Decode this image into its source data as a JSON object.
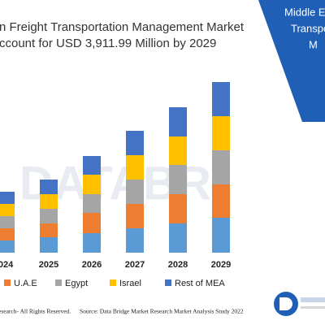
{
  "header": {
    "title_line1": "n Freight Transportation Management Market",
    "title_line2": "ccount for USD 3,911.99 Million by 2029"
  },
  "side_panel": {
    "lines": [
      "Middle E",
      "Transpo",
      "M"
    ]
  },
  "watermark": "DATABRI",
  "chart_data": {
    "type": "stacked_bar",
    "categories": [
      "024",
      "2025",
      "2026",
      "2027",
      "2028",
      "2029"
    ],
    "series": [
      {
        "color": "#5b9bd5",
        "values": [
          15,
          19,
          24,
          30,
          36,
          43
        ]
      },
      {
        "name": "U.A.E",
        "color": "#ed7d31",
        "values": [
          15,
          17,
          25,
          30,
          36,
          41
        ]
      },
      {
        "name": "Egypt",
        "color": "#a5a5a5",
        "values": [
          15,
          18,
          23,
          30,
          36,
          42
        ]
      },
      {
        "name": "Israel",
        "color": "#ffc000",
        "values": [
          15,
          18,
          24,
          30,
          35,
          42
        ]
      },
      {
        "name": "Rest of MEA",
        "color": "#4472c4",
        "values": [
          15,
          18,
          23,
          30,
          36,
          42
        ]
      }
    ]
  },
  "footer": {
    "left": "esearch- All Rights Reserved.",
    "right": "Source: Data Bridge Market Research Market Analysis Study 2022"
  }
}
